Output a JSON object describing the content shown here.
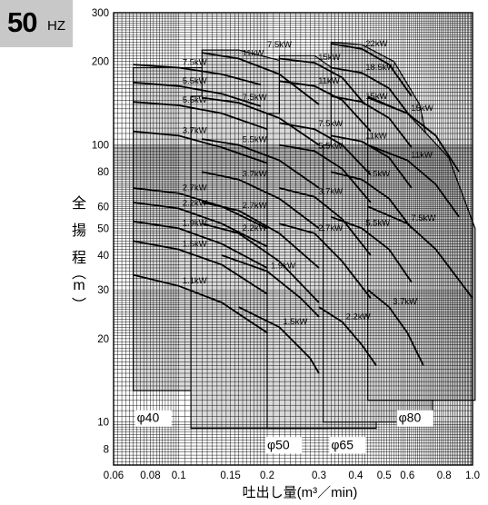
{
  "badge": {
    "value": "50",
    "unit": "HZ"
  },
  "chart_data": {
    "type": "area",
    "title": "",
    "xlabel": "吐出し量(m³／min)",
    "ylabel_chars": [
      "全",
      "揚",
      "程",
      "︵",
      "m",
      "︶"
    ],
    "x_scale": "log",
    "y_scale": "log",
    "xlim": [
      0.06,
      1.0
    ],
    "ylim": [
      7,
      300
    ],
    "x_ticks": [
      0.06,
      0.08,
      0.1,
      0.15,
      0.2,
      0.3,
      0.4,
      0.5,
      0.6,
      0.8,
      1.0
    ],
    "x_tick_labels": [
      "0.06",
      "0.08",
      "0.1",
      "0.15",
      "0.2",
      "0.3",
      "0.4",
      "0.5",
      "0.6",
      "0.8",
      "1.0"
    ],
    "y_ticks": [
      8,
      10,
      20,
      30,
      40,
      50,
      60,
      80,
      100,
      200,
      300
    ],
    "y_tick_labels": [
      "8",
      "10",
      "20",
      "30",
      "40",
      "50",
      "60",
      "80",
      "100",
      "200",
      "300"
    ],
    "grid": true,
    "regions": [
      {
        "name": "φ40",
        "fill": "#d9d9d9",
        "outline": [
          [
            0.07,
            13
          ],
          [
            0.07,
            190
          ],
          [
            0.13,
            190
          ],
          [
            0.18,
            178
          ],
          [
            0.2,
            160
          ],
          [
            0.2,
            13
          ]
        ]
      },
      {
        "name": "φ50",
        "fill": "#d9d9d9",
        "outline": [
          [
            0.11,
            9.5
          ],
          [
            0.11,
            150
          ],
          [
            0.12,
            150
          ],
          [
            0.12,
            220
          ],
          [
            0.16,
            220
          ],
          [
            0.25,
            195
          ],
          [
            0.32,
            150
          ],
          [
            0.32,
            9.5
          ]
        ]
      },
      {
        "name": "φ65",
        "fill": "#d9d9d9",
        "outline": [
          [
            0.2,
            9.5
          ],
          [
            0.2,
            130
          ],
          [
            0.22,
            130
          ],
          [
            0.22,
            210
          ],
          [
            0.29,
            210
          ],
          [
            0.37,
            175
          ],
          [
            0.43,
            120
          ],
          [
            0.47,
            70
          ],
          [
            0.47,
            9.5
          ]
        ]
      },
      {
        "name": "φ80",
        "fill": "#d9d9d9",
        "outline": [
          [
            0.31,
            10
          ],
          [
            0.31,
            100
          ],
          [
            0.33,
            100
          ],
          [
            0.33,
            235
          ],
          [
            0.42,
            230
          ],
          [
            0.54,
            200
          ],
          [
            0.66,
            140
          ],
          [
            0.73,
            85
          ],
          [
            0.73,
            10
          ]
        ]
      },
      {
        "name": "",
        "fill": "#d9d9d9",
        "outline": [
          [
            0.44,
            12
          ],
          [
            0.44,
            150
          ],
          [
            0.6,
            130
          ],
          [
            0.83,
            90
          ],
          [
            1.02,
            50
          ],
          [
            1.02,
            12
          ]
        ]
      }
    ],
    "series": [
      {
        "label": "7.5kW",
        "points": [
          [
            0.07,
            195
          ],
          [
            0.1,
            190
          ],
          [
            0.14,
            180
          ],
          [
            0.19,
            165
          ]
        ]
      },
      {
        "label": "5.5kW",
        "points": [
          [
            0.07,
            168
          ],
          [
            0.1,
            163
          ],
          [
            0.14,
            153
          ],
          [
            0.19,
            138
          ]
        ]
      },
      {
        "label": "5.5kW",
        "points": [
          [
            0.07,
            143
          ],
          [
            0.1,
            139
          ],
          [
            0.14,
            130
          ],
          [
            0.2,
            114
          ]
        ]
      },
      {
        "label": "3.7kW",
        "points": [
          [
            0.07,
            112
          ],
          [
            0.1,
            108
          ],
          [
            0.14,
            98
          ],
          [
            0.2,
            86
          ]
        ]
      },
      {
        "label": "2.7kW",
        "points": [
          [
            0.07,
            70
          ],
          [
            0.1,
            67
          ],
          [
            0.14,
            60
          ],
          [
            0.2,
            50
          ]
        ]
      },
      {
        "label": "2.2kW",
        "points": [
          [
            0.07,
            62
          ],
          [
            0.1,
            59
          ],
          [
            0.14,
            52
          ],
          [
            0.2,
            43
          ]
        ]
      },
      {
        "label": "1.9kW",
        "points": [
          [
            0.07,
            53
          ],
          [
            0.1,
            50
          ],
          [
            0.14,
            44
          ],
          [
            0.2,
            36
          ]
        ]
      },
      {
        "label": "1.5kW",
        "points": [
          [
            0.07,
            45
          ],
          [
            0.1,
            42
          ],
          [
            0.14,
            37
          ],
          [
            0.2,
            29
          ]
        ]
      },
      {
        "label": "1.1kW",
        "points": [
          [
            0.07,
            34
          ],
          [
            0.1,
            31
          ],
          [
            0.14,
            27
          ],
          [
            0.2,
            21
          ]
        ]
      },
      {
        "label": "11kW",
        "points": [
          [
            0.12,
            215
          ],
          [
            0.16,
            205
          ],
          [
            0.22,
            180
          ],
          [
            0.3,
            140
          ]
        ]
      },
      {
        "label": "7.5kW",
        "points": [
          [
            0.12,
            148
          ],
          [
            0.16,
            142
          ],
          [
            0.22,
            125
          ],
          [
            0.3,
            100
          ]
        ]
      },
      {
        "label": "5.5kW",
        "points": [
          [
            0.12,
            105
          ],
          [
            0.16,
            100
          ],
          [
            0.22,
            88
          ],
          [
            0.3,
            70
          ]
        ]
      },
      {
        "label": "3.7kW",
        "points": [
          [
            0.12,
            80
          ],
          [
            0.16,
            75
          ],
          [
            0.22,
            64
          ],
          [
            0.3,
            50
          ]
        ]
      },
      {
        "label": "2.7kW",
        "points": [
          [
            0.12,
            62
          ],
          [
            0.16,
            58
          ],
          [
            0.22,
            48
          ],
          [
            0.3,
            36
          ]
        ]
      },
      {
        "label": "2.2kW",
        "points": [
          [
            0.12,
            52
          ],
          [
            0.16,
            48
          ],
          [
            0.22,
            38
          ],
          [
            0.3,
            27
          ]
        ]
      },
      {
        "label": "1.9kW",
        "points": [
          [
            0.14,
            40
          ],
          [
            0.2,
            35
          ],
          [
            0.26,
            28
          ],
          [
            0.3,
            24
          ]
        ]
      },
      {
        "label": "1.5kW",
        "points": [
          [
            0.16,
            26
          ],
          [
            0.22,
            22
          ],
          [
            0.28,
            17
          ],
          [
            0.3,
            15
          ]
        ]
      },
      {
        "label": "15kW",
        "points": [
          [
            0.22,
            205
          ],
          [
            0.29,
            198
          ],
          [
            0.36,
            175
          ],
          [
            0.43,
            140
          ]
        ]
      },
      {
        "label": "11kW",
        "points": [
          [
            0.22,
            170
          ],
          [
            0.29,
            163
          ],
          [
            0.36,
            145
          ],
          [
            0.45,
            112
          ]
        ]
      },
      {
        "label": "7.5kW",
        "points": [
          [
            0.22,
            120
          ],
          [
            0.29,
            114
          ],
          [
            0.36,
            100
          ],
          [
            0.45,
            78
          ]
        ]
      },
      {
        "label": "5.5kW",
        "points": [
          [
            0.22,
            100
          ],
          [
            0.29,
            95
          ],
          [
            0.36,
            82
          ],
          [
            0.45,
            62
          ]
        ]
      },
      {
        "label": "3.7kW",
        "points": [
          [
            0.22,
            70
          ],
          [
            0.29,
            65
          ],
          [
            0.36,
            54
          ],
          [
            0.45,
            40
          ]
        ]
      },
      {
        "label": "2.7kW",
        "points": [
          [
            0.22,
            52
          ],
          [
            0.29,
            48
          ],
          [
            0.36,
            38
          ],
          [
            0.45,
            28
          ]
        ]
      },
      {
        "label": "2.2kW",
        "points": [
          [
            0.3,
            26
          ],
          [
            0.36,
            23
          ],
          [
            0.42,
            19
          ],
          [
            0.47,
            16
          ]
        ]
      },
      {
        "label": "22kW",
        "points": [
          [
            0.33,
            232
          ],
          [
            0.42,
            222
          ],
          [
            0.52,
            195
          ],
          [
            0.62,
            150
          ]
        ]
      },
      {
        "label": "18.5kW",
        "points": [
          [
            0.33,
            190
          ],
          [
            0.42,
            182
          ],
          [
            0.52,
            160
          ],
          [
            0.62,
            125
          ]
        ]
      },
      {
        "label": "15kW",
        "points": [
          [
            0.33,
            150
          ],
          [
            0.42,
            143
          ],
          [
            0.52,
            125
          ],
          [
            0.62,
            98
          ]
        ]
      },
      {
        "label": "11kW",
        "points": [
          [
            0.33,
            108
          ],
          [
            0.42,
            103
          ],
          [
            0.52,
            90
          ],
          [
            0.62,
            70
          ]
        ]
      },
      {
        "label": "7.5kW",
        "points": [
          [
            0.33,
            80
          ],
          [
            0.42,
            75
          ],
          [
            0.52,
            64
          ],
          [
            0.62,
            50
          ]
        ]
      },
      {
        "label": "5.5kW",
        "points": [
          [
            0.33,
            55
          ],
          [
            0.42,
            50
          ],
          [
            0.52,
            42
          ],
          [
            0.62,
            32
          ]
        ]
      },
      {
        "label": "3.7kW",
        "points": [
          [
            0.44,
            30
          ],
          [
            0.52,
            26
          ],
          [
            0.6,
            21
          ],
          [
            0.68,
            16
          ]
        ]
      },
      {
        "label": "15kW",
        "points": [
          [
            0.44,
            148
          ],
          [
            0.6,
            130
          ],
          [
            0.75,
            108
          ],
          [
            0.9,
            80
          ]
        ]
      },
      {
        "label": "11kW",
        "points": [
          [
            0.44,
            100
          ],
          [
            0.6,
            88
          ],
          [
            0.75,
            72
          ],
          [
            0.9,
            55
          ]
        ]
      },
      {
        "label": "7.5kW",
        "points": [
          [
            0.44,
            60
          ],
          [
            0.6,
            52
          ],
          [
            0.75,
            42
          ],
          [
            1.0,
            28
          ]
        ]
      }
    ],
    "labels": [
      {
        "text": "7.5kW",
        "at": [
          0.2,
          225
        ]
      },
      {
        "text": "φ40",
        "at": [
          0.072,
          10
        ]
      },
      {
        "text": "φ50",
        "at": [
          0.2,
          8
        ]
      },
      {
        "text": "φ65",
        "at": [
          0.33,
          8
        ]
      },
      {
        "text": "φ80",
        "at": [
          0.56,
          10
        ]
      }
    ]
  }
}
